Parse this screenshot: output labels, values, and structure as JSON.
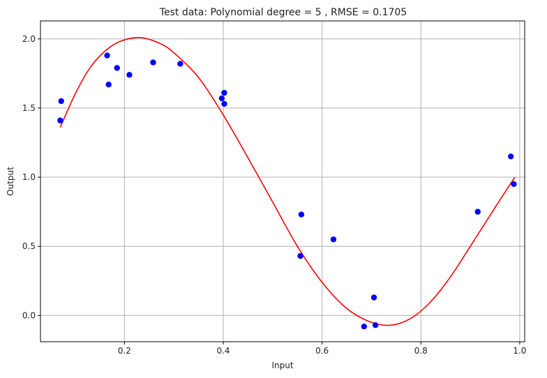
{
  "chart_data": {
    "type": "scatter",
    "title": "Test data: Polynomial degree = 5 , RMSE = 0.1705",
    "xlabel": "Input",
    "ylabel": "Output",
    "xlim": [
      0.03,
      1.01
    ],
    "ylim": [
      -0.19,
      2.13
    ],
    "xticks": [
      0.2,
      0.4,
      0.6,
      0.8,
      1.0
    ],
    "xtick_labels": [
      "0.2",
      "0.4",
      "0.6",
      "0.8",
      "1.0"
    ],
    "yticks": [
      0.0,
      0.5,
      1.0,
      1.5,
      2.0
    ],
    "ytick_labels": [
      "0.0",
      "0.5",
      "1.0",
      "1.5",
      "2.0"
    ],
    "grid": true,
    "points": {
      "color": "#0000ff",
      "x": [
        0.07,
        0.072,
        0.165,
        0.168,
        0.185,
        0.21,
        0.258,
        0.313,
        0.397,
        0.402,
        0.402,
        0.556,
        0.558,
        0.623,
        0.685,
        0.705,
        0.708,
        0.915,
        0.982,
        0.988
      ],
      "y": [
        1.41,
        1.55,
        1.88,
        1.67,
        1.79,
        1.74,
        1.83,
        1.82,
        1.57,
        1.61,
        1.53,
        0.43,
        0.73,
        0.55,
        -0.08,
        0.13,
        -0.07,
        0.75,
        1.15,
        0.95
      ]
    },
    "fit_curve": {
      "color": "#ff0000",
      "x": [
        0.07,
        0.1,
        0.13,
        0.16,
        0.19,
        0.23,
        0.27,
        0.3,
        0.35,
        0.4,
        0.45,
        0.5,
        0.55,
        0.6,
        0.65,
        0.7,
        0.74,
        0.78,
        0.82,
        0.86,
        0.9,
        0.95,
        0.99
      ],
      "y": [
        1.36,
        1.6,
        1.79,
        1.91,
        1.98,
        2.01,
        1.97,
        1.9,
        1.72,
        1.45,
        1.14,
        0.82,
        0.5,
        0.24,
        0.05,
        -0.05,
        -0.07,
        -0.02,
        0.1,
        0.28,
        0.5,
        0.78,
        1.0
      ]
    }
  }
}
